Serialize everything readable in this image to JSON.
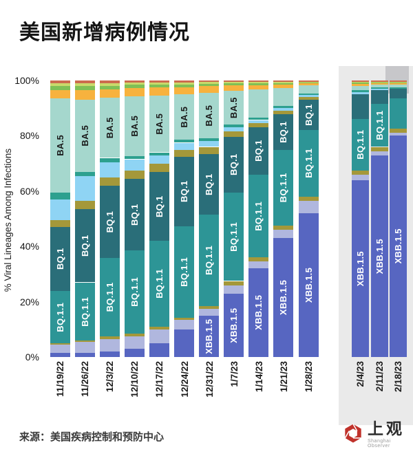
{
  "title": "美国新增病例情况",
  "source": "来源：美国疾病控制和预防中心",
  "logo": {
    "name": "上观",
    "subtitle": "Shanghai Observer",
    "icon_color": "#c0322b"
  },
  "chart_data": {
    "type": "bar",
    "stacked": true,
    "title": "美国新增病例情况",
    "ylabel": "% Viral Lineages Among Infections",
    "ylim": [
      0,
      100
    ],
    "yticks": [
      "100%",
      "80%",
      "60%",
      "40%",
      "20%",
      "0%"
    ],
    "grid": false,
    "legend": "none (labels drawn inside segments)",
    "categories": [
      "11/19/22",
      "11/26/22",
      "12/3/22",
      "12/10/22",
      "12/17/22",
      "12/24/22",
      "12/31/22",
      "1/7/23",
      "1/14/23",
      "1/21/23",
      "1/28/23",
      "2/4/23",
      "2/11/23",
      "2/18/23"
    ],
    "highlighted_categories": [
      "2/4/23",
      "2/11/23",
      "2/18/23"
    ],
    "highlight_panel_color": "#eaeaea",
    "highlight_cap_color": "#c7c7ca",
    "series": [
      {
        "name": "XBB.1.5",
        "color": "#5766c1",
        "label_text_color": "#ffffff",
        "values": [
          1.5,
          1.5,
          2,
          3,
          5,
          10,
          15,
          23,
          32,
          43,
          52,
          64,
          73,
          80
        ],
        "label_on": [
          6,
          7,
          8,
          9,
          10,
          11,
          12,
          13
        ]
      },
      {
        "name": "other-lavender",
        "color": "#b0b7de",
        "label_text_color": "#ffffff",
        "values": [
          3,
          4,
          4.5,
          4.5,
          5,
          3.5,
          2.5,
          3,
          2.5,
          3,
          4.5,
          2,
          1.5,
          1
        ],
        "label_on": []
      },
      {
        "name": "other-olive-low",
        "color": "#a4983a",
        "label_text_color": "#ffffff",
        "values": [
          0.5,
          0.5,
          1,
          1,
          1,
          0.8,
          1,
          1.5,
          1.5,
          1.5,
          1.5,
          1.5,
          1.5,
          1.5
        ],
        "label_on": []
      },
      {
        "name": "BQ.1.1",
        "color": "#2d9596",
        "label_text_color": "#ffffff",
        "values": [
          19,
          21,
          28.3,
          30,
          31,
          33,
          33,
          32,
          30,
          27.3,
          24,
          18.5,
          15.5,
          11
        ],
        "label_on": [
          0,
          1,
          2,
          3,
          4,
          5,
          6,
          7,
          8,
          9,
          10,
          11,
          12
        ]
      },
      {
        "name": "BQ.1",
        "color": "#2a6e79",
        "label_text_color": "#ffffff",
        "values": [
          23,
          26.5,
          26.2,
          26,
          25,
          25,
          22,
          20,
          17,
          13,
          11,
          9,
          5,
          3.5
        ],
        "label_on": [
          0,
          1,
          2,
          3,
          4,
          5,
          6,
          7,
          8,
          9,
          10
        ]
      },
      {
        "name": "other-olive-mid",
        "color": "#a4983a",
        "label_text_color": "#ffffff",
        "values": [
          2.5,
          3,
          3,
          3,
          3,
          2.7,
          2.5,
          2,
          1.5,
          1.2,
          1,
          0,
          0,
          0
        ],
        "label_on": []
      },
      {
        "name": "other-light-blue",
        "color": "#8fd4f4",
        "label_text_color": "#1a1a1a",
        "values": [
          7.5,
          9,
          5.5,
          4,
          3,
          2.5,
          2,
          1.5,
          1.2,
          1,
          0.8,
          0.7,
          0.5,
          0
        ],
        "label_on": []
      },
      {
        "name": "other-teal-green",
        "color": "#2da08f",
        "label_text_color": "#ffffff",
        "values": [
          2.5,
          1.5,
          1.5,
          1.2,
          1,
          1,
          1,
          1,
          0.8,
          0.8,
          0.5,
          0.8,
          0.5,
          0.5
        ],
        "label_on": []
      },
      {
        "name": "BA.5",
        "color": "#a5d7cd",
        "label_text_color": "#1a1a1a",
        "values": [
          34,
          26,
          21.8,
          21.5,
          20.5,
          16.5,
          16.5,
          12.3,
          10.3,
          6.5,
          3,
          1.5,
          1,
          1
        ],
        "label_on": [
          0,
          1,
          2,
          3,
          4,
          5,
          6,
          7
        ]
      },
      {
        "name": "other-orange",
        "color": "#f7b23e",
        "label_text_color": "#1a1a1a",
        "values": [
          3,
          3.5,
          3,
          3,
          3,
          2.5,
          2.5,
          2,
          1.5,
          1.2,
          0.7,
          0.7,
          0.5,
          0.5
        ],
        "label_on": []
      },
      {
        "name": "other-green",
        "color": "#7fc055",
        "label_text_color": "#1a1a1a",
        "values": [
          1.5,
          1.5,
          1.3,
          1.2,
          1,
          1,
          0.8,
          0.7,
          0.7,
          0.5,
          0.3,
          0.5,
          0.3,
          0.3
        ],
        "label_on": []
      },
      {
        "name": "other-yellow-green",
        "color": "#c9d96b",
        "label_text_color": "#1a1a1a",
        "values": [
          1,
          1,
          1,
          0.8,
          0.7,
          0.7,
          0.7,
          0.5,
          0.5,
          0.5,
          0.3,
          0.4,
          0.3,
          0.3
        ],
        "label_on": []
      },
      {
        "name": "other-salmon",
        "color": "#cc6b4e",
        "label_text_color": "#ffffff",
        "values": [
          1,
          1,
          0.9,
          0.8,
          0.8,
          0.8,
          0.5,
          0.5,
          0.5,
          0.5,
          0.4,
          0.4,
          0.4,
          0.4
        ],
        "label_on": []
      }
    ]
  }
}
